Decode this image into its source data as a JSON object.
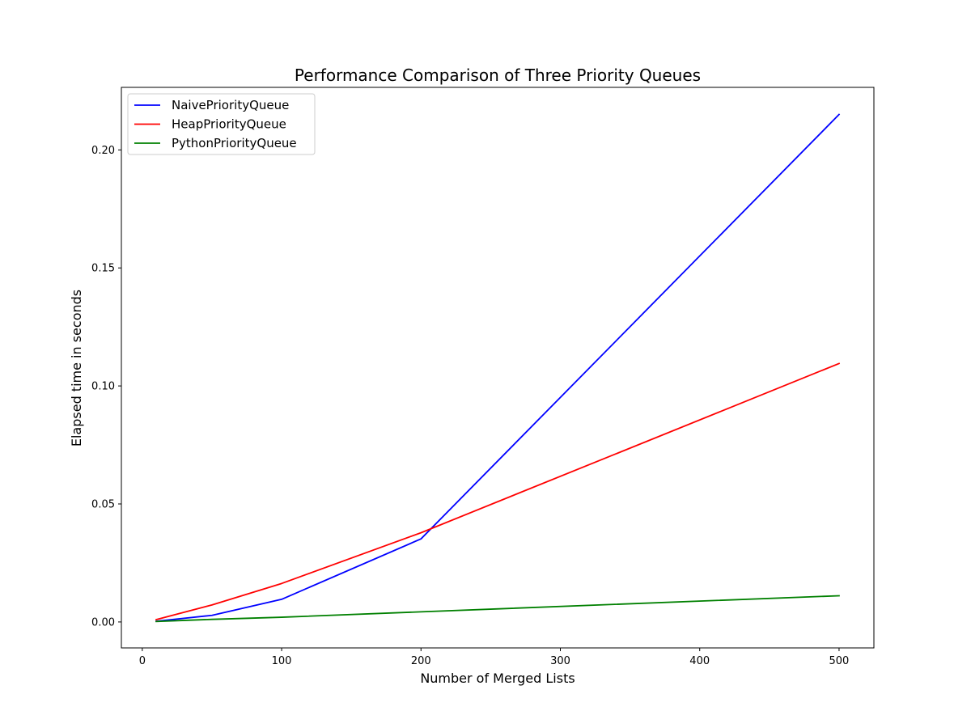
{
  "chart_data": {
    "type": "line",
    "title": "Performance Comparison of Three Priority Queues",
    "xlabel": "Number of Merged Lists",
    "ylabel": "Elapsed time in seconds",
    "xlim": [
      -15,
      525
    ],
    "ylim": [
      -0.011,
      0.2265
    ],
    "xticks": [
      0,
      100,
      200,
      300,
      400,
      500
    ],
    "xtick_labels": [
      "0",
      "100",
      "200",
      "300",
      "400",
      "500"
    ],
    "yticks": [
      0.0,
      0.05,
      0.1,
      0.15,
      0.2
    ],
    "ytick_labels": [
      "0.00",
      "0.05",
      "0.10",
      "0.15",
      "0.20"
    ],
    "grid": false,
    "legend_position": "top-left",
    "x": [
      10,
      50,
      100,
      200,
      500
    ],
    "series": [
      {
        "name": "NaivePriorityQueue",
        "color": "#0000ff",
        "values": [
          0.0003,
          0.0028,
          0.0096,
          0.0352,
          0.215
        ]
      },
      {
        "name": "HeapPriorityQueue",
        "color": "#ff0000",
        "values": [
          0.001,
          0.0072,
          0.0163,
          0.0378,
          0.1095
        ]
      },
      {
        "name": "PythonPriorityQueue",
        "color": "#008000",
        "values": [
          0.0002,
          0.0011,
          0.002,
          0.0043,
          0.0111
        ]
      }
    ]
  }
}
